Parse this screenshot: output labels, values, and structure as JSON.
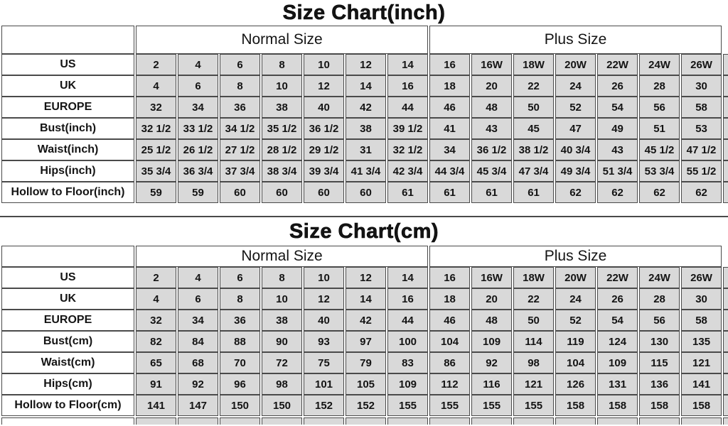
{
  "chart_data": [
    {
      "type": "table",
      "title": "Size Chart(inch)",
      "column_groups": [
        {
          "label": "Normal Size",
          "span": 7
        },
        {
          "label": "Plus Size",
          "span": 7
        }
      ],
      "rows": [
        {
          "label": "US",
          "values": [
            "2",
            "4",
            "6",
            "8",
            "10",
            "12",
            "14",
            "16",
            "16W",
            "18W",
            "20W",
            "22W",
            "24W",
            "26W"
          ]
        },
        {
          "label": "UK",
          "values": [
            "4",
            "6",
            "8",
            "10",
            "12",
            "14",
            "16",
            "18",
            "20",
            "22",
            "24",
            "26",
            "28",
            "30"
          ]
        },
        {
          "label": "EUROPE",
          "values": [
            "32",
            "34",
            "36",
            "38",
            "40",
            "42",
            "44",
            "46",
            "48",
            "50",
            "52",
            "54",
            "56",
            "58"
          ]
        },
        {
          "label": "Bust(inch)",
          "values": [
            "32 1/2",
            "33 1/2",
            "34 1/2",
            "35 1/2",
            "36 1/2",
            "38",
            "39 1/2",
            "41",
            "43",
            "45",
            "47",
            "49",
            "51",
            "53"
          ]
        },
        {
          "label": "Waist(inch)",
          "values": [
            "25 1/2",
            "26 1/2",
            "27 1/2",
            "28 1/2",
            "29 1/2",
            "31",
            "32 1/2",
            "34",
            "36 1/2",
            "38 1/2",
            "40 3/4",
            "43",
            "45 1/2",
            "47 1/2"
          ]
        },
        {
          "label": "Hips(inch)",
          "values": [
            "35 3/4",
            "36 3/4",
            "37 3/4",
            "38 3/4",
            "39 3/4",
            "41 3/4",
            "42 3/4",
            "44 3/4",
            "45 3/4",
            "47 3/4",
            "49 3/4",
            "51 3/4",
            "53 3/4",
            "55 1/2"
          ]
        },
        {
          "label": "Hollow to Floor(inch)",
          "values": [
            "59",
            "59",
            "60",
            "60",
            "60",
            "60",
            "61",
            "61",
            "61",
            "61",
            "62",
            "62",
            "62",
            "62"
          ]
        }
      ]
    },
    {
      "type": "table",
      "title": "Size Chart(cm)",
      "column_groups": [
        {
          "label": "Normal Size",
          "span": 7
        },
        {
          "label": "Plus Size",
          "span": 7
        }
      ],
      "rows": [
        {
          "label": "US",
          "values": [
            "2",
            "4",
            "6",
            "8",
            "10",
            "12",
            "14",
            "16",
            "16W",
            "18W",
            "20W",
            "22W",
            "24W",
            "26W"
          ]
        },
        {
          "label": "UK",
          "values": [
            "4",
            "6",
            "8",
            "10",
            "12",
            "14",
            "16",
            "18",
            "20",
            "22",
            "24",
            "26",
            "28",
            "30"
          ]
        },
        {
          "label": "EUROPE",
          "values": [
            "32",
            "34",
            "36",
            "38",
            "40",
            "42",
            "44",
            "46",
            "48",
            "50",
            "52",
            "54",
            "56",
            "58"
          ]
        },
        {
          "label": "Bust(cm)",
          "values": [
            "82",
            "84",
            "88",
            "90",
            "93",
            "97",
            "100",
            "104",
            "109",
            "114",
            "119",
            "124",
            "130",
            "135"
          ]
        },
        {
          "label": "Waist(cm)",
          "values": [
            "65",
            "68",
            "70",
            "72",
            "75",
            "79",
            "83",
            "86",
            "92",
            "98",
            "104",
            "109",
            "115",
            "121"
          ]
        },
        {
          "label": "Hips(cm)",
          "values": [
            "91",
            "92",
            "96",
            "98",
            "101",
            "105",
            "109",
            "112",
            "116",
            "121",
            "126",
            "131",
            "136",
            "141"
          ]
        },
        {
          "label": "Hollow to Floor(cm)",
          "values": [
            "141",
            "147",
            "150",
            "150",
            "152",
            "152",
            "155",
            "155",
            "155",
            "155",
            "158",
            "158",
            "158",
            "158"
          ]
        }
      ]
    }
  ],
  "colors": {
    "cell_fill": "#d9d9d9",
    "border": "#4a4a4a",
    "text": "#141414",
    "background": "#ffffff"
  }
}
